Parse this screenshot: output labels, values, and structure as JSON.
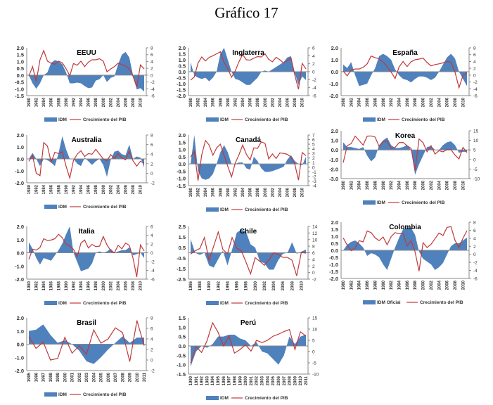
{
  "page_title": "Gráfico 17",
  "chart_data": [
    {
      "type": "area+line",
      "title": "EEUU",
      "legend": [
        "IDM",
        "Crecimiento del PIB"
      ],
      "x_start": 1980,
      "x_end": 2011,
      "tick_every": 2,
      "ylim": [
        -1.5,
        2.0
      ],
      "ystep": 0.5,
      "y2lim": [
        -6,
        8
      ],
      "y2step": 2,
      "idm": [
        0.0,
        -0.6,
        -1.0,
        -0.6,
        0.0,
        0.2,
        0.9,
        1.1,
        1.0,
        0.8,
        0.2,
        -0.6,
        -0.6,
        -0.55,
        -0.6,
        -0.8,
        -0.95,
        -0.9,
        -0.4,
        -0.3,
        0.0,
        -0.5,
        -0.2,
        -0.1,
        0.8,
        1.5,
        1.7,
        1.3,
        0.0,
        -1.05,
        -0.95,
        -1.2
      ],
      "gdp": [
        -0.3,
        2.5,
        -1.9,
        4.5,
        7.2,
        4.1,
        3.5,
        3.2,
        4.1,
        3.6,
        1.9,
        -0.2,
        3.4,
        2.9,
        4.1,
        2.5,
        3.8,
        4.5,
        4.5,
        4.8,
        4.1,
        1.0,
        1.8,
        2.5,
        3.5,
        3.1,
        2.7,
        1.9,
        -0.3,
        -3.5,
        3.0,
        1.8
      ]
    },
    {
      "type": "area+line",
      "title": "Inglaterra",
      "legend": [
        "IDM",
        "Crecimiento del PIB"
      ],
      "x_start": 1980,
      "x_end": 2011,
      "tick_every": 2,
      "ylim": [
        -2.0,
        2.0
      ],
      "ystep": 0.5,
      "y2lim": [
        -6,
        6
      ],
      "y2step": 2,
      "idm": [
        0.8,
        -0.3,
        -0.5,
        -0.6,
        -0.5,
        -0.8,
        -0.5,
        0.0,
        1.5,
        2.0,
        1.0,
        0.0,
        -0.6,
        -0.7,
        -0.9,
        -1.1,
        -1.1,
        -0.8,
        -0.5,
        0.0,
        0.1,
        0.0,
        0.2,
        0.4,
        0.6,
        0.8,
        1.2,
        1.3,
        -0.1,
        -1.1,
        -0.4,
        -0.7
      ],
      "gdp": [
        -2.1,
        -1.3,
        2.2,
        3.7,
        2.7,
        3.6,
        4.0,
        4.5,
        5.0,
        2.3,
        0.8,
        -1.4,
        0.2,
        2.5,
        4.3,
        3.0,
        2.9,
        3.4,
        3.8,
        3.7,
        4.5,
        3.1,
        2.5,
        3.6,
        3.0,
        2.2,
        2.8,
        3.4,
        -0.8,
        -4.4,
        2.1,
        0.7
      ]
    },
    {
      "type": "area+line",
      "title": "España",
      "legend": [
        "IDM",
        "Crecimiento del PIB"
      ],
      "x_start": 1980,
      "x_end": 2011,
      "tick_every": 2,
      "ylim": [
        -2.0,
        2.0
      ],
      "ystep": 1,
      "y2lim": [
        -6,
        8
      ],
      "y2step": 2,
      "idm": [
        0.6,
        0.3,
        0.8,
        -0.3,
        -1.2,
        -1.1,
        -1.0,
        -0.3,
        0.3,
        1.3,
        1.5,
        1.3,
        1.0,
        0.2,
        -0.3,
        -0.6,
        -0.7,
        -0.9,
        -0.6,
        -0.4,
        -0.4,
        -0.5,
        -0.7,
        -0.5,
        0.0,
        0.6,
        1.2,
        1.5,
        1.1,
        0.0,
        -0.6,
        -1.2
      ],
      "gdp": [
        1.2,
        -0.2,
        1.5,
        1.8,
        1.8,
        2.3,
        3.3,
        5.6,
        5.1,
        4.8,
        3.8,
        2.5,
        0.9,
        -1.0,
        2.4,
        4.0,
        2.5,
        3.9,
        4.5,
        4.7,
        5.0,
        3.7,
        2.7,
        3.1,
        3.3,
        3.6,
        4.0,
        3.8,
        0.9,
        -3.7,
        -0.1,
        0.7
      ]
    },
    {
      "type": "area+line",
      "title": "Australia",
      "legend": [
        "IDM",
        "Crecimiento del PIB"
      ],
      "x_start": 1980,
      "x_end": 2011,
      "tick_every": 2,
      "ylim": [
        -2.0,
        2.0
      ],
      "ystep": 1,
      "y2lim": [
        -2,
        8
      ],
      "y2step": 2,
      "idm": [
        0.0,
        0.5,
        0.0,
        -0.6,
        0.0,
        -0.1,
        -0.3,
        -0.6,
        0.5,
        1.9,
        0.8,
        0.0,
        0.0,
        -0.4,
        -0.6,
        0.1,
        -0.2,
        -0.5,
        -0.2,
        0.0,
        -0.5,
        -1.5,
        -0.1,
        0.6,
        0.7,
        0.4,
        0.3,
        1.2,
        0.0,
        0.2,
        0.1,
        -0.7
      ],
      "gdp": [
        2.5,
        3.7,
        0.0,
        -0.5,
        6.4,
        5.7,
        2.3,
        4.4,
        4.1,
        4.5,
        1.5,
        -1.0,
        2.7,
        4.0,
        4.7,
        3.5,
        4.1,
        4.0,
        5.0,
        4.0,
        3.0,
        2.6,
        3.9,
        3.1,
        4.1,
        3.2,
        2.8,
        4.6,
        2.6,
        1.5,
        2.5,
        2.1
      ]
    },
    {
      "type": "area+line",
      "title": "Canadá",
      "legend": [
        "IDM",
        "Crecimiento del PIB"
      ],
      "x_start": 1980,
      "x_end": 2011,
      "tick_every": 2,
      "ylim": [
        -1.5,
        2.0
      ],
      "ystep": 0.5,
      "y2lim": [
        -4,
        7
      ],
      "y2step": 1,
      "idm": [
        0.0,
        2.0,
        -0.5,
        -1.0,
        -1.1,
        -1.0,
        -0.7,
        0.0,
        0.8,
        1.3,
        0.8,
        0.0,
        0.0,
        0.1,
        0.1,
        -0.3,
        -0.4,
        0.5,
        0.2,
        -0.3,
        -0.55,
        -0.55,
        -0.5,
        -0.4,
        -0.3,
        -0.2,
        0.3,
        0.6,
        0.2,
        0.0,
        -0.1,
        0.5
      ],
      "gdp": [
        2.2,
        3.5,
        -2.9,
        2.7,
        5.8,
        4.8,
        2.6,
        4.2,
        5.0,
        2.6,
        0.2,
        -2.1,
        0.9,
        2.7,
        4.8,
        2.8,
        1.6,
        4.2,
        4.1,
        5.5,
        5.2,
        1.8,
        2.9,
        1.9,
        3.1,
        3.0,
        2.8,
        2.2,
        0.7,
        -2.8,
        3.2,
        2.5
      ]
    },
    {
      "type": "area+line",
      "title": "Korea",
      "legend": [
        "IDM",
        "Crecimiento del PIB"
      ],
      "x_start": 1980,
      "x_end": 2011,
      "tick_every": 2,
      "ylim": [
        -3.0,
        2.0
      ],
      "ystep": 1,
      "y2lim": [
        -10,
        15
      ],
      "y2step": 5,
      "idm": [
        0.8,
        0.3,
        0.3,
        0.2,
        0.1,
        0.3,
        -0.6,
        -1.2,
        -0.8,
        0.5,
        1.0,
        1.3,
        0.5,
        0.2,
        0.2,
        0.3,
        0.5,
        0.0,
        -2.6,
        -1.5,
        -0.6,
        0.3,
        0.4,
        0.0,
        0.0,
        0.5,
        0.8,
        0.9,
        0.5,
        -0.3,
        -0.2,
        -0.2
      ],
      "gdp": [
        -1.7,
        7.2,
        8.3,
        12.2,
        9.9,
        7.5,
        12.2,
        12.3,
        11.7,
        6.8,
        9.3,
        9.7,
        5.8,
        6.3,
        8.8,
        8.9,
        7.2,
        5.8,
        -5.7,
        10.7,
        8.8,
        4.0,
        7.2,
        2.8,
        4.6,
        4.0,
        5.2,
        5.1,
        2.3,
        0.3,
        6.3,
        3.6
      ]
    },
    {
      "type": "area+line",
      "title": "Italia",
      "legend": [
        "IDM",
        "Crecimiento del PIB"
      ],
      "x_start": 1980,
      "x_end": 2011,
      "tick_every": 2,
      "ylim": [
        -2.0,
        2.0
      ],
      "ystep": 1,
      "y2lim": [
        -6,
        6
      ],
      "y2step": 2,
      "idm": [
        0.8,
        0.3,
        -0.4,
        -0.9,
        -0.4,
        -0.5,
        -0.6,
        -0.2,
        0.2,
        0.7,
        1.4,
        2.0,
        0.0,
        -0.7,
        -1.4,
        -1.3,
        -1.2,
        -0.8,
        0.0,
        0.1,
        0.0,
        0.1,
        0.3,
        0.0,
        0.1,
        0.2,
        0.2,
        0.4,
        -0.2,
        -0.1,
        0.0,
        -0.4
      ],
      "gdp": [
        -1.5,
        0.8,
        0.6,
        1.2,
        3.2,
        2.8,
        2.9,
        3.2,
        4.2,
        3.4,
        2.0,
        1.5,
        0.8,
        -0.9,
        2.2,
        2.9,
        1.1,
        1.9,
        1.4,
        1.5,
        3.7,
        1.8,
        0.5,
        0.0,
        1.7,
        0.9,
        2.2,
        1.7,
        -1.2,
        -5.5,
        1.8,
        0.4
      ]
    },
    {
      "type": "area+line",
      "title": "Chile",
      "legend": [
        "IDM",
        "Crecimiento del PIB"
      ],
      "x_start": 1986,
      "x_end": 2011,
      "tick_every": 2,
      "ylim": [
        -2.5,
        2.5
      ],
      "ystep": 1,
      "y2lim": [
        -2,
        14
      ],
      "y2step": 2,
      "idm": [
        1.3,
        0.0,
        -0.2,
        0.0,
        -1.2,
        -1.4,
        -0.6,
        0.2,
        -1.2,
        0.3,
        1.9,
        2.2,
        2.0,
        0.8,
        0.5,
        -0.8,
        -1.0,
        -1.6,
        -1.6,
        -0.7,
        -0.1,
        0.0,
        1.0,
        -0.1,
        0.1,
        0.3
      ],
      "gdp": [
        5.6,
        6.6,
        7.3,
        10.6,
        3.7,
        8.0,
        12.3,
        7.0,
        5.7,
        10.6,
        7.4,
        6.6,
        3.2,
        -0.4,
        4.5,
        3.4,
        2.2,
        3.9,
        6.0,
        5.6,
        4.6,
        4.6,
        3.7,
        -1.0,
        6.1,
        5.9
      ]
    },
    {
      "type": "area+line",
      "title": "Colombia",
      "legend": [
        "IDM Oficial",
        "Crecimiento del PIB"
      ],
      "x_start": 1980,
      "x_end": 2011,
      "tick_every": 2,
      "ylim": [
        -2.0,
        2.0
      ],
      "ystep": 0.5,
      "y2lim": [
        -6,
        8
      ],
      "y2step": 2,
      "idm": [
        0.0,
        0.4,
        0.6,
        0.7,
        0.5,
        0.2,
        -0.4,
        -0.2,
        -0.3,
        -0.5,
        -1.0,
        -1.4,
        -0.6,
        0.2,
        0.9,
        1.5,
        1.6,
        1.6,
        1.1,
        -0.1,
        -0.6,
        -0.8,
        -1.0,
        -1.4,
        -1.2,
        -0.9,
        -0.3,
        0.3,
        0.5,
        0.5,
        0.7,
        0.9
      ],
      "gdp": [
        4.1,
        2.3,
        0.9,
        1.6,
        3.4,
        3.1,
        5.8,
        5.4,
        4.1,
        3.4,
        4.3,
        2.4,
        4.4,
        5.4,
        5.1,
        5.2,
        2.1,
        3.4,
        0.6,
        -4.2,
        2.9,
        1.7,
        2.5,
        3.9,
        5.3,
        4.7,
        6.7,
        6.9,
        3.5,
        1.7,
        4.0,
        5.9
      ]
    },
    {
      "type": "area+line",
      "title": "Brasil",
      "legend": [
        "IDM",
        "Crecimiento del PIB"
      ],
      "x_start": 1995,
      "x_end": 2011,
      "tick_every": 1,
      "ylim": [
        -2.0,
        2.0
      ],
      "ystep": 1,
      "y2lim": [
        -2,
        8
      ],
      "y2step": 2,
      "idm": [
        1.0,
        1.1,
        1.5,
        0.7,
        0.1,
        0.3,
        0.0,
        -0.5,
        -1.3,
        -1.5,
        -1.0,
        -0.4,
        0.1,
        0.6,
        0.1,
        0.5,
        0.5
      ],
      "gdp": [
        4.4,
        2.2,
        3.4,
        0.0,
        0.3,
        4.3,
        1.3,
        2.7,
        1.1,
        5.7,
        3.2,
        4.0,
        6.1,
        5.2,
        -0.3,
        7.5,
        2.7
      ]
    },
    {
      "type": "area+line",
      "title": "Perú",
      "legend": [
        "IDM",
        "Crecimiento del PIB"
      ],
      "x_start": 1990,
      "x_end": 2011,
      "tick_every": 1,
      "ylim": [
        -1.5,
        1.5
      ],
      "ystep": 0.5,
      "y2lim": [
        -10,
        15
      ],
      "y2step": 5,
      "idm": [
        -1.1,
        -0.3,
        0.0,
        -0.1,
        0.1,
        0.5,
        0.5,
        0.6,
        0.6,
        0.4,
        0.3,
        0.0,
        0.2,
        -0.3,
        -0.4,
        -0.7,
        -1.0,
        -0.5,
        0.5,
        0.1,
        0.5,
        0.6
      ],
      "gdp": [
        -5.1,
        2.2,
        -0.4,
        4.8,
        12.8,
        8.6,
        2.5,
        6.9,
        -0.7,
        0.9,
        3.0,
        0.2,
        5.0,
        4.0,
        5.0,
        6.8,
        7.7,
        8.9,
        9.8,
        0.9,
        8.8,
        6.9
      ]
    }
  ],
  "colors": {
    "idm": "#4f81bd",
    "gdp": "#c0393b"
  }
}
